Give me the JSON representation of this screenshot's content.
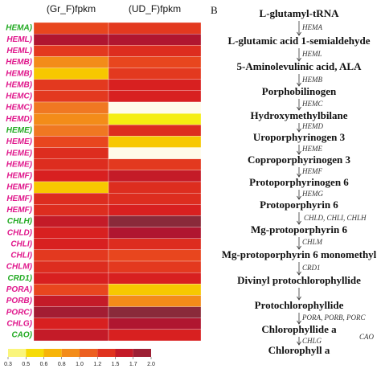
{
  "chart_data": {
    "type": "heatmap",
    "columns": [
      "(Gr_F)fpkm",
      "(UD_F)fpkm"
    ],
    "rows": [
      "HEMA)",
      "HEML)",
      "HEML)",
      "HEMB)",
      "HEMB)",
      "HEMB)",
      "HEMC)",
      "HEMC)",
      "HEMD)",
      "HEME)",
      "HEME)",
      "HEME)",
      "HEME)",
      "HEMF)",
      "HEMF)",
      "HEMF)",
      "HEMF)",
      "CHLH)",
      "CHLD)",
      "CHLI)",
      "CHLI)",
      "CHLM)",
      "CRD1)",
      "PORA)",
      "PORB)",
      "PORC)",
      "CHLG)",
      "CAO)"
    ],
    "row_label_colors": [
      "#22aa22",
      "#e0188c",
      "#e0188c",
      "#e0188c",
      "#e0188c",
      "#e0188c",
      "#e0188c",
      "#e0188c",
      "#e0188c",
      "#22aa22",
      "#e0188c",
      "#e0188c",
      "#e0188c",
      "#e0188c",
      "#e0188c",
      "#e0188c",
      "#e0188c",
      "#22aa22",
      "#e0188c",
      "#e0188c",
      "#e0188c",
      "#e0188c",
      "#22aa22",
      "#e0188c",
      "#e0188c",
      "#e0188c",
      "#e0188c",
      "#22aa22"
    ],
    "values": [
      [
        1.2,
        1.3
      ],
      [
        1.7,
        1.7
      ],
      [
        1.3,
        1.4
      ],
      [
        0.9,
        1.2
      ],
      [
        0.6,
        1.3
      ],
      [
        1.3,
        1.5
      ],
      [
        1.3,
        1.5
      ],
      [
        1.0,
        0.3
      ],
      [
        0.9,
        0.5
      ],
      [
        1.0,
        1.4
      ],
      [
        1.2,
        0.6
      ],
      [
        1.4,
        0.3
      ],
      [
        1.4,
        1.3
      ],
      [
        1.5,
        1.6
      ],
      [
        0.6,
        1.4
      ],
      [
        1.4,
        1.4
      ],
      [
        1.4,
        1.5
      ],
      [
        1.6,
        2.0
      ],
      [
        1.5,
        1.7
      ],
      [
        1.5,
        1.4
      ],
      [
        1.3,
        1.2
      ],
      [
        1.4,
        1.3
      ],
      [
        1.5,
        1.5
      ],
      [
        1.2,
        0.6
      ],
      [
        1.6,
        0.9
      ],
      [
        1.8,
        2.0
      ],
      [
        1.5,
        1.7
      ],
      [
        1.6,
        1.5
      ]
    ],
    "color_ticks": [
      0.3,
      0.5,
      0.6,
      0.8,
      {
        "value": 1,
        "label": "1.0"
      },
      1.2,
      1.5,
      1.7,
      {
        "value": 2,
        "label": "2.0"
      }
    ],
    "color_stops": [
      "#fffbe8",
      "#f5ee10",
      "#f7c800",
      "#f6a010",
      "#f07822",
      "#e8461e",
      "#d82020",
      "#b01630",
      "#8a2a3a"
    ]
  },
  "pathway": {
    "panel_label": "B",
    "compounds": [
      "L-glutamyl-tRNA",
      "L-glutamic acid 1-semialdehyde",
      "5-Aminolevulinic acid, ALA",
      "Porphobilinogen",
      "Hydroxymethylbilane",
      "Uroporphyrinogen 3",
      "Coproporphyrinogen 3",
      "Protoporphyrinogen 6",
      "Protoporphyrin 6",
      "Mg-protoporphyrin 6",
      "Mg-protoporphyrin 6 monomethyl",
      "Divinyl protochlorophyllide",
      "Protochlorophyllide",
      "Chlorophyllide a",
      "Chlorophyll a"
    ],
    "enzymes": [
      "HEMA",
      "HEML",
      "HEMB",
      "HEMC",
      "HEMD",
      "HEME",
      "HEMF",
      "HEMG",
      "CHLD, CHLI, CHLH",
      "CHLM",
      "CRD1",
      "PORA, PORB, PORC",
      "CHLG",
      "CAO"
    ]
  }
}
